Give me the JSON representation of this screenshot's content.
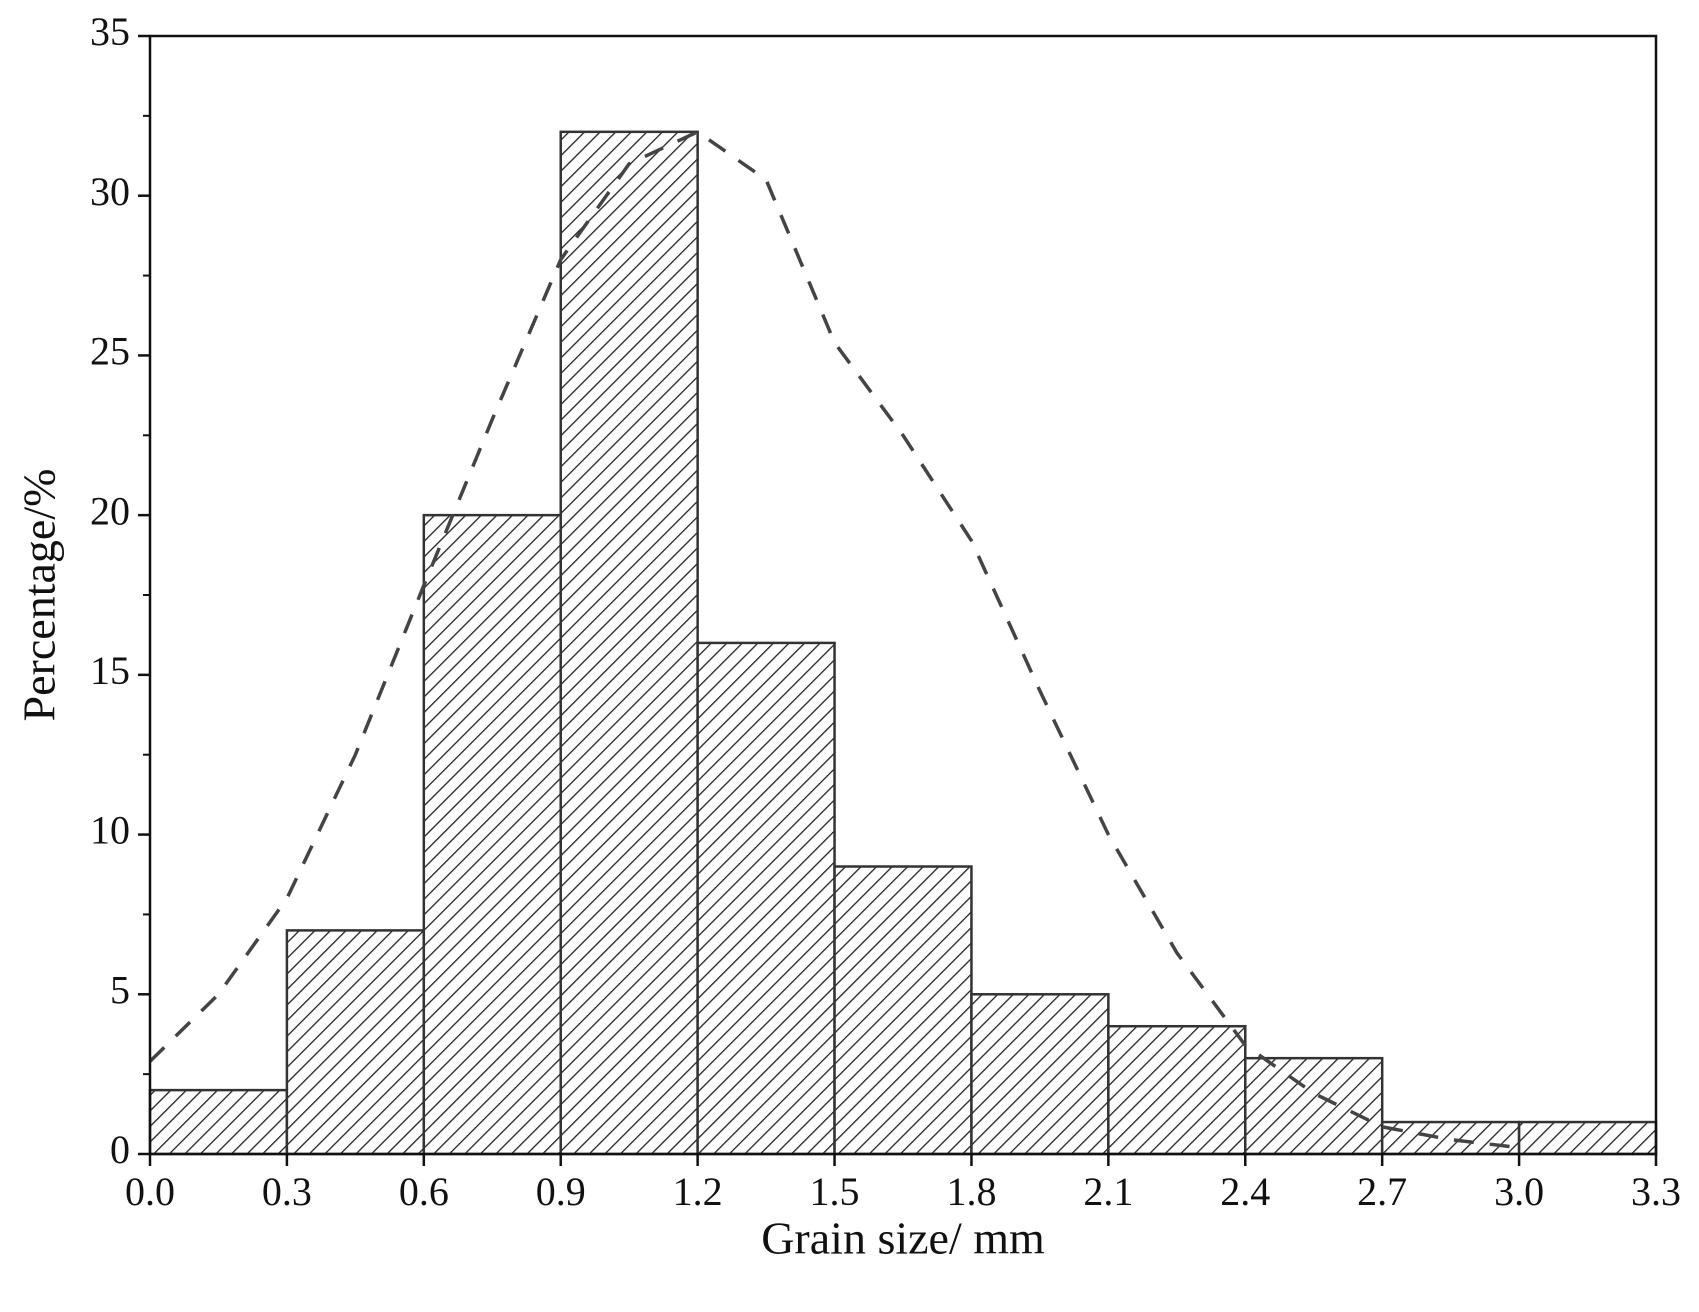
{
  "chart_data": {
    "type": "histogram",
    "x_label": "Grain size/ mm",
    "y_label": "Percentage/%",
    "bins": [
      0.0,
      0.3,
      0.6,
      0.9,
      1.2,
      1.5,
      1.8,
      2.1,
      2.4,
      2.7,
      3.0,
      3.3
    ],
    "values": [
      2,
      7,
      20,
      32,
      16,
      9,
      5,
      4,
      3,
      1,
      1
    ],
    "color": "#333333",
    "fit": {
      "x": [
        0.0,
        0.15,
        0.3,
        0.45,
        0.6,
        0.75,
        0.9,
        1.05,
        1.2,
        1.35,
        1.5,
        1.65,
        1.8,
        1.95,
        2.1,
        2.25,
        2.4,
        2.55,
        2.7,
        2.85,
        3.0
      ],
      "values": [
        2.9,
        5,
        8,
        12.5,
        17.8,
        23,
        28,
        31,
        32,
        30.5,
        25.4,
        22.5,
        19.2,
        14.5,
        10,
        6.3,
        3.4,
        1.9,
        0.85,
        0.45,
        0.2
      ],
      "color": "#444444"
    },
    "xlim": [
      0.0,
      3.3
    ],
    "xticks": [
      {
        "value": 0.0,
        "label": "0.0"
      },
      0.3,
      0.6,
      0.9,
      1.2,
      1.5,
      1.8,
      2.1,
      2.4,
      2.7,
      {
        "value": 3.0,
        "label": "3.0"
      },
      3.3
    ],
    "ylim": [
      0,
      35
    ],
    "yticks": [
      0,
      5,
      10,
      15,
      20,
      25,
      30,
      35
    ]
  }
}
